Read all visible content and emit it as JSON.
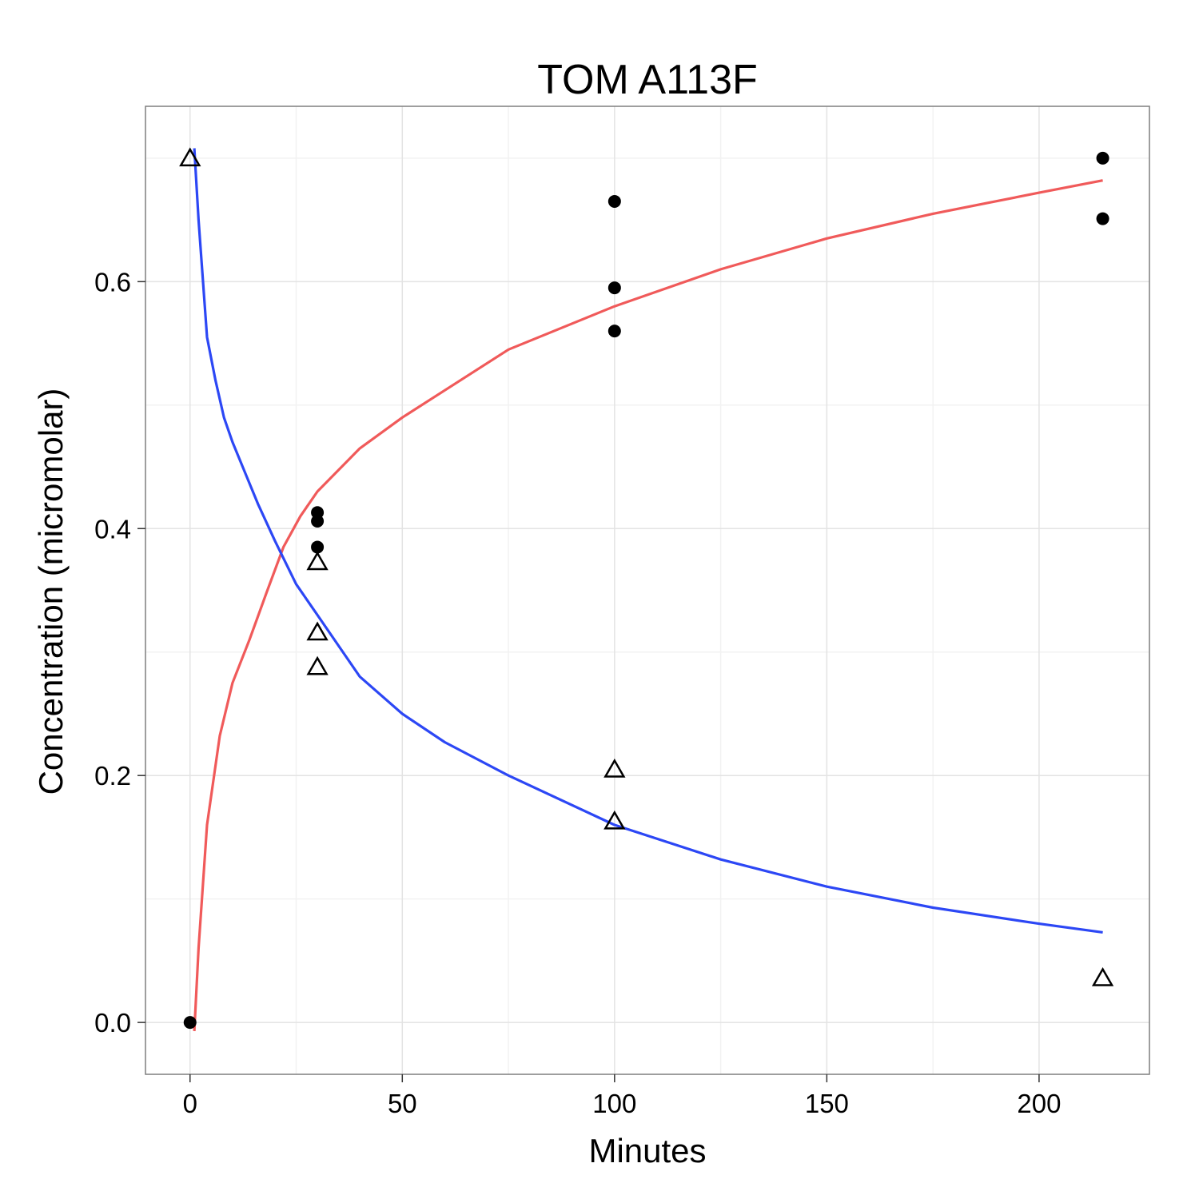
{
  "chart_data": {
    "type": "scatter",
    "title": "TOM A113F",
    "xlabel": "Minutes",
    "ylabel": "Concentration (micromolar)",
    "xlim": [
      -10.5,
      226
    ],
    "ylim": [
      -0.042,
      0.742
    ],
    "grid": true,
    "x_ticks": [
      0,
      50,
      100,
      150,
      200
    ],
    "x_tick_labels": [
      "0",
      "50",
      "100",
      "150",
      "200"
    ],
    "y_ticks": [
      0.0,
      0.2,
      0.4,
      0.6
    ],
    "y_tick_labels": [
      "0.0",
      "0.2",
      "0.4",
      "0.6"
    ],
    "x_minor": [
      25,
      75,
      125,
      175
    ],
    "y_minor": [
      0.1,
      0.3,
      0.5,
      0.7
    ],
    "points": [
      {
        "marker": "circle",
        "color": "#000000",
        "x": [
          0,
          30,
          30,
          30,
          100,
          100,
          100,
          215,
          215
        ],
        "y": [
          0.0,
          0.413,
          0.406,
          0.385,
          0.665,
          0.595,
          0.56,
          0.7,
          0.651
        ]
      },
      {
        "marker": "triangle-open",
        "color": "#000000",
        "x": [
          0,
          30,
          30,
          30,
          100,
          100,
          215
        ],
        "y": [
          0.7,
          0.373,
          0.316,
          0.288,
          0.205,
          0.163,
          0.036
        ]
      }
    ],
    "lines": [
      {
        "color": "#F05A5A",
        "x": [
          1,
          2,
          4,
          7,
          10,
          14,
          18,
          22,
          26,
          30,
          40,
          50,
          60,
          75,
          100,
          125,
          150,
          175,
          200,
          215
        ],
        "y": [
          -0.007,
          0.06,
          0.16,
          0.232,
          0.275,
          0.31,
          0.348,
          0.385,
          0.41,
          0.43,
          0.465,
          0.49,
          0.512,
          0.545,
          0.58,
          0.61,
          0.635,
          0.655,
          0.672,
          0.682
        ]
      },
      {
        "color": "#2C47F5",
        "x": [
          1,
          2,
          4,
          6,
          8,
          10,
          13,
          16,
          20,
          25,
          30,
          40,
          50,
          60,
          75,
          100,
          125,
          150,
          175,
          200,
          215
        ],
        "y": [
          0.708,
          0.65,
          0.555,
          0.52,
          0.49,
          0.47,
          0.445,
          0.42,
          0.39,
          0.355,
          0.33,
          0.28,
          0.25,
          0.227,
          0.2,
          0.16,
          0.132,
          0.11,
          0.093,
          0.08,
          0.073
        ]
      }
    ]
  }
}
